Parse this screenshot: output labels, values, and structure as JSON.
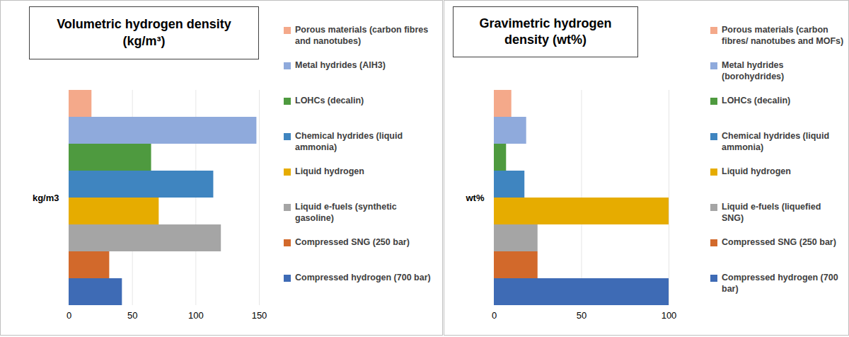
{
  "chart_data": [
    {
      "type": "bar",
      "orientation": "horizontal",
      "title": "Volumetric hydrogen density (kg/m³)",
      "ylabel": "kg/m3",
      "categories": [
        "Porous materials (carbon fibres and nanotubes)",
        "Metal hydrides (AlH3)",
        "LOHCs (decalin)",
        "Chemical hydrides (liquid ammonia)",
        "Liquid hydrogen",
        "Liquid e-fuels (synthetic gasoline)",
        "Compressed SNG (250 bar)",
        "Compressed hydrogen (700 bar)"
      ],
      "values": [
        18,
        148,
        65,
        114,
        71,
        120,
        32,
        42
      ],
      "colors": [
        "#f4a98a",
        "#8faadc",
        "#4e9a3f",
        "#3f85c0",
        "#e6ac00",
        "#a5a5a5",
        "#d2692b",
        "#3e6bb5"
      ],
      "xlim": [
        0,
        150
      ],
      "xticks": [
        0,
        50,
        100,
        150
      ],
      "grid": true,
      "legend": "right",
      "tick_labels": "x"
    },
    {
      "type": "bar",
      "orientation": "horizontal",
      "title": "Gravimetric hydrogen density (wt%)",
      "ylabel": "wt%",
      "categories": [
        "Porous materials (carbon fibres/ nanotubes and MOFs)",
        "Metal hydrides (borohydrides)",
        "LOHCs (decalin)",
        "Chemical hydrides (liquid ammonia)",
        "Liquid hydrogen",
        "Liquid e-fuels (liquefied SNG)",
        "Compressed SNG (250 bar)",
        "Compressed hydrogen (700 bar)"
      ],
      "values": [
        10,
        18.5,
        7,
        17.5,
        100,
        25,
        25,
        100
      ],
      "colors": [
        "#f4a98a",
        "#8faadc",
        "#4e9a3f",
        "#3f85c0",
        "#e6ac00",
        "#a5a5a5",
        "#d2692b",
        "#3e6bb5"
      ],
      "xlim": [
        0,
        100
      ],
      "xticks": [
        0,
        50,
        100
      ],
      "grid": true,
      "legend": "right",
      "tick_labels": "x"
    }
  ]
}
